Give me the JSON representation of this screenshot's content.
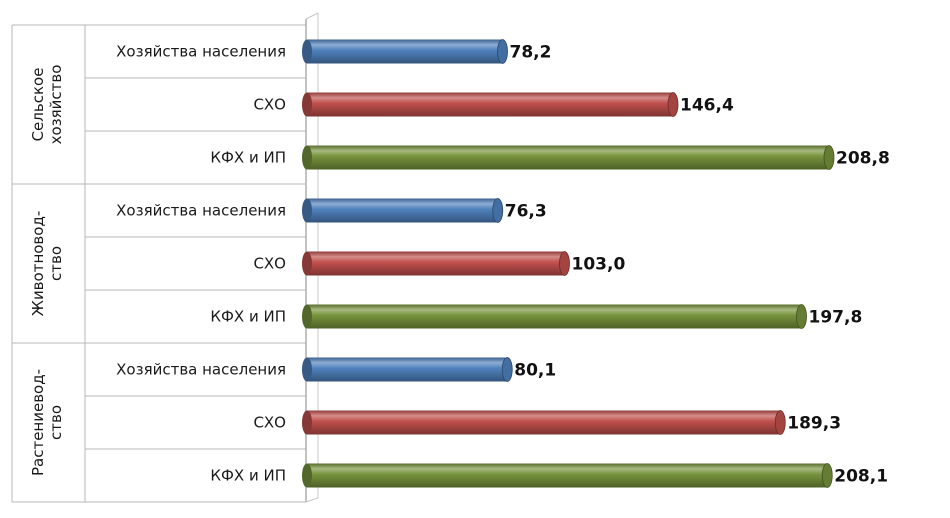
{
  "chart_data": {
    "type": "bar",
    "orientation": "horizontal",
    "value_format": "comma-decimal",
    "groups": [
      {
        "label": "Сельское хозяйство",
        "label_lines": [
          "Сельское",
          "хозяйство"
        ],
        "bars": [
          {
            "category": "Хозяйства населения",
            "value": 78.2,
            "label": "78,2",
            "color": "#4f81bd"
          },
          {
            "category": "СХО",
            "value": 146.4,
            "label": "146,4",
            "color": "#c0504d"
          },
          {
            "category": "КФХ и ИП",
            "value": 208.8,
            "label": "208,8",
            "color": "#77933c"
          }
        ]
      },
      {
        "label": "Животновод-ство",
        "label_lines": [
          "Животновод-",
          "ство"
        ],
        "bars": [
          {
            "category": "Хозяйства населения",
            "value": 76.3,
            "label": "76,3",
            "color": "#4f81bd"
          },
          {
            "category": "СХО",
            "value": 103.0,
            "label": "103,0",
            "color": "#c0504d"
          },
          {
            "category": "КФХ и ИП",
            "value": 197.8,
            "label": "197,8",
            "color": "#77933c"
          }
        ]
      },
      {
        "label": "Растениевод-ство",
        "label_lines": [
          "Растениевод-",
          "ство"
        ],
        "bars": [
          {
            "category": "Хозяйства населения",
            "value": 80.1,
            "label": "80,1",
            "color": "#4f81bd"
          },
          {
            "category": "СХО",
            "value": 189.3,
            "label": "189,3",
            "color": "#c0504d"
          },
          {
            "category": "КФХ и ИП",
            "value": 208.1,
            "label": "208,1",
            "color": "#77933c"
          }
        ]
      }
    ],
    "xlim": [
      0,
      240
    ],
    "grid": false,
    "legend": "none",
    "series_colors": {
      "Хозяйства населения": "#4f81bd",
      "СХО": "#c0504d",
      "КФХ и ИП": "#77933c"
    }
  }
}
